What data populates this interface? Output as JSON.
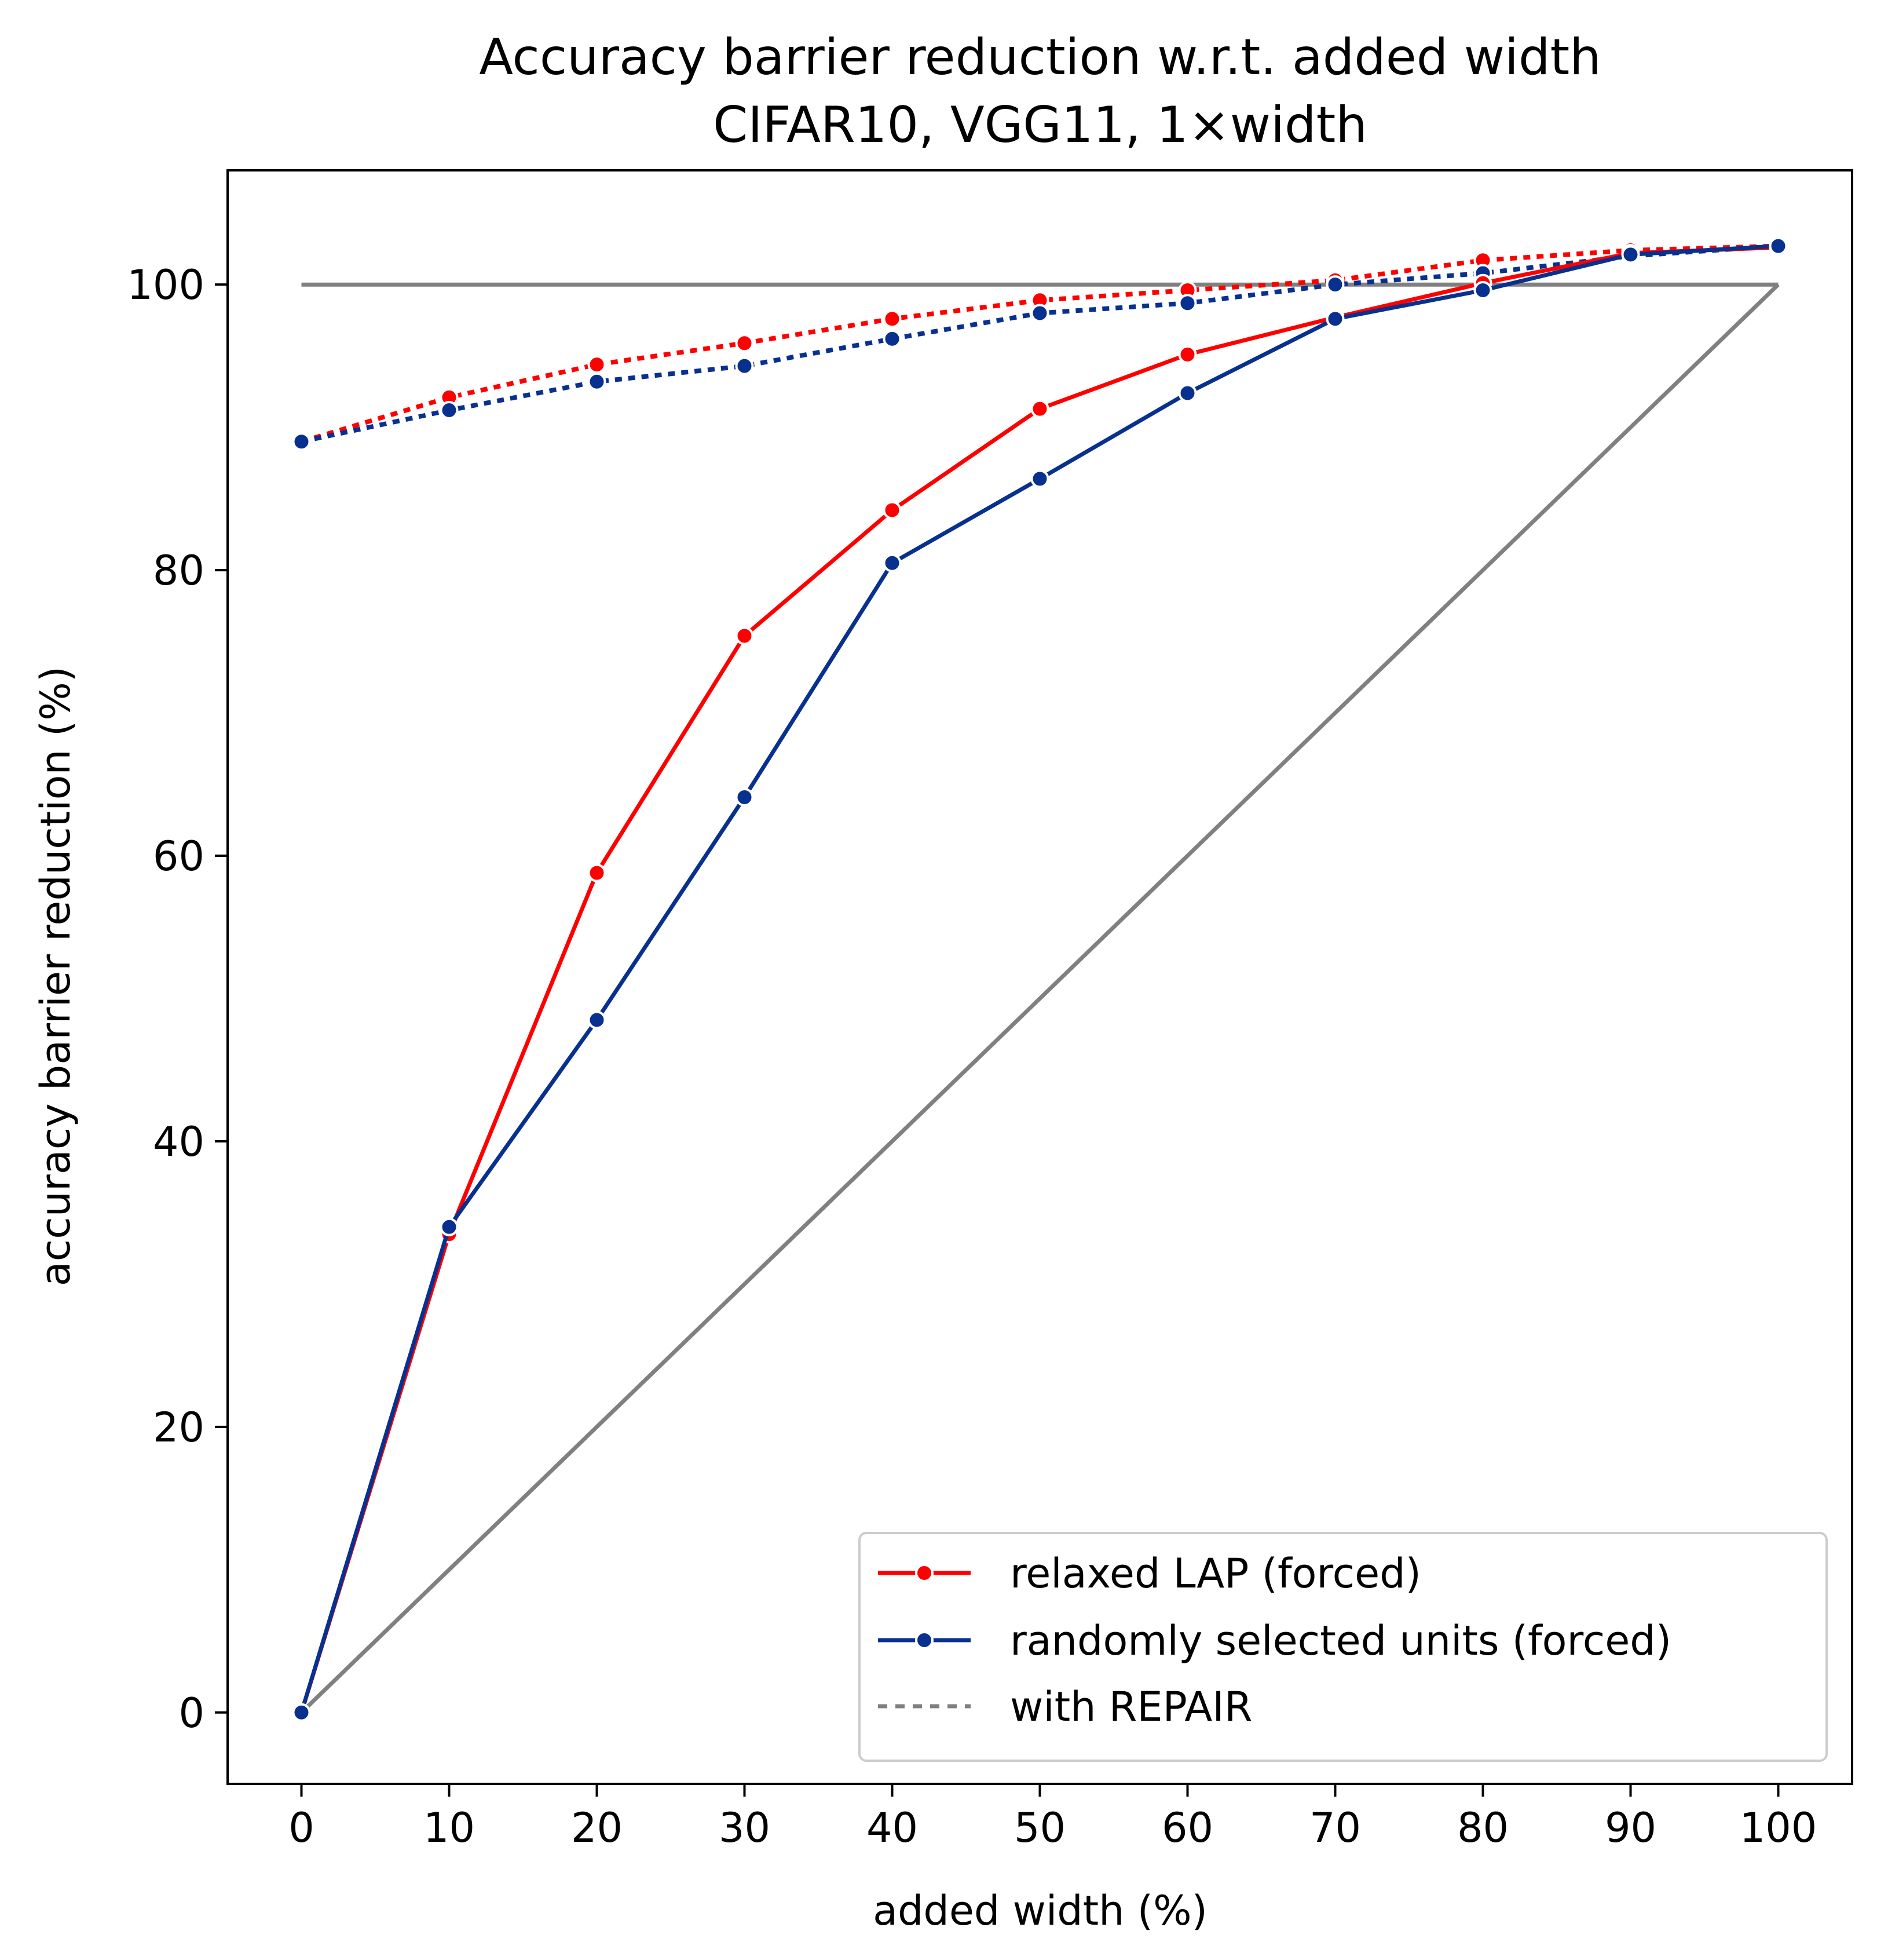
{
  "chart_data": {
    "type": "line",
    "title": "Accuracy barrier reduction w.r.t. added width",
    "subtitle": "CIFAR10, VGG11, 1×width",
    "xlabel": "added width (%)",
    "ylabel": "accuracy barrier reduction (%)",
    "xlim": [
      -5,
      105
    ],
    "ylim": [
      -5,
      108
    ],
    "xticks": [
      0,
      10,
      20,
      30,
      40,
      50,
      60,
      70,
      80,
      90,
      100
    ],
    "yticks": [
      0,
      20,
      40,
      60,
      80,
      100
    ],
    "x": [
      0,
      10,
      20,
      30,
      40,
      50,
      60,
      70,
      80,
      90,
      100
    ],
    "grid": false,
    "legend_position": "lower-right",
    "series": [
      {
        "name": "relaxed LAP (forced)",
        "color": "#ff0000",
        "style": "solid",
        "marker": true,
        "values": [
          0,
          33.5,
          58.8,
          75.4,
          84.2,
          91.3,
          95.1,
          97.7,
          100.1,
          102.2,
          102.6
        ]
      },
      {
        "name": "randomly selected units (forced)",
        "color": "#08308e",
        "style": "solid",
        "marker": true,
        "values": [
          0,
          34.0,
          48.5,
          64.1,
          80.5,
          86.4,
          92.4,
          97.6,
          99.6,
          102.1,
          102.7
        ]
      },
      {
        "name": "relaxed LAP (forced) with REPAIR",
        "color": "#ff0000",
        "style": "dotted",
        "marker": true,
        "values": [
          89.0,
          92.1,
          94.4,
          95.9,
          97.6,
          98.9,
          99.6,
          100.3,
          101.7,
          102.4,
          102.7
        ]
      },
      {
        "name": "randomly selected units (forced) with REPAIR",
        "color": "#08308e",
        "style": "dotted",
        "marker": true,
        "values": [
          89.0,
          91.2,
          93.2,
          94.3,
          96.2,
          98.0,
          98.7,
          100.0,
          100.8,
          102.0,
          102.7
        ]
      },
      {
        "name": "reference 100%",
        "color": "#808080",
        "style": "solid",
        "marker": false,
        "values": [
          100,
          100,
          100,
          100,
          100,
          100,
          100,
          100,
          100,
          100,
          100
        ]
      },
      {
        "name": "reference linear",
        "color": "#808080",
        "style": "solid",
        "marker": false,
        "values": [
          0,
          10,
          20,
          30,
          40,
          50,
          60,
          70,
          80,
          90,
          100
        ]
      }
    ],
    "legend": [
      {
        "label": "relaxed LAP (forced)",
        "color": "#ff0000",
        "style": "solid",
        "marker": true
      },
      {
        "label": "randomly selected units (forced)",
        "color": "#08308e",
        "style": "solid",
        "marker": true
      },
      {
        "label": "with REPAIR",
        "color": "#808080",
        "style": "dotted",
        "marker": false
      }
    ]
  }
}
